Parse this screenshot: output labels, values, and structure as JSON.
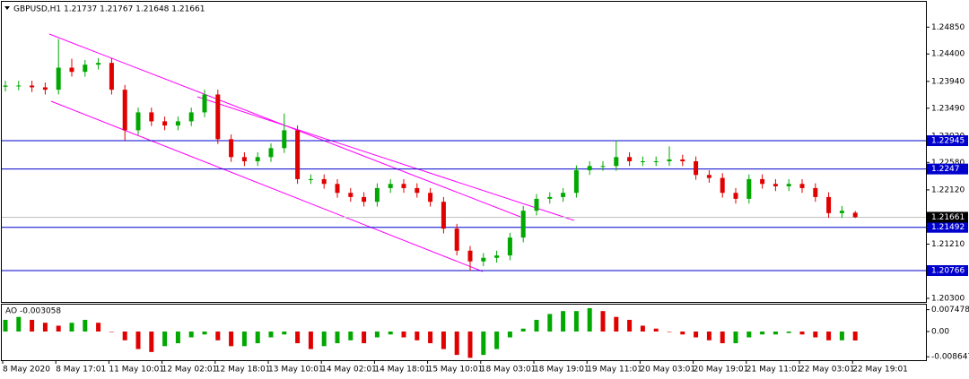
{
  "chart_data": {
    "type": "candlestick",
    "title": "GBPUSD,H1  1.21737 1.21767 1.21648 1.21661",
    "categories": [
      "8 May 2020",
      null,
      null,
      null,
      "8 May 17:01",
      null,
      null,
      null,
      "11 May 10:01",
      null,
      null,
      null,
      "12 May 02:01",
      null,
      null,
      null,
      "12 May 18:01",
      null,
      null,
      null,
      "13 May 10:01",
      null,
      null,
      null,
      "14 May 02:01",
      null,
      null,
      null,
      "14 May 18:01",
      null,
      null,
      null,
      "15 May 10:01",
      null,
      null,
      null,
      "18 May 03:01",
      null,
      null,
      null,
      "18 May 19:01",
      null,
      null,
      null,
      "19 May 11:01",
      null,
      null,
      null,
      "20 May 03:01",
      null,
      null,
      null,
      "20 May 19:01",
      null,
      null,
      null,
      "21 May 11:01",
      null,
      null,
      null,
      "22 May 03:01",
      null,
      null,
      null,
      "22 May 19:01"
    ],
    "open": [
      1.2385,
      1.2387,
      1.2387,
      1.2384,
      1.238,
      1.2417,
      1.241,
      1.2422,
      1.2425,
      1.238,
      1.2312,
      1.2342,
      1.2327,
      1.232,
      1.2327,
      1.2342,
      1.2372,
      1.2297,
      1.2267,
      1.226,
      1.2267,
      1.2282,
      1.2312,
      1.223,
      1.223,
      1.2222,
      1.2207,
      1.22,
      1.2192,
      1.2215,
      1.2222,
      1.2215,
      1.2207,
      1.2192,
      1.2147,
      1.211,
      1.2092,
      1.2098,
      1.2102,
      1.2132,
      1.2177,
      1.2197,
      1.22,
      1.2207,
      1.2245,
      1.2252,
      1.2252,
      1.2267,
      1.226,
      1.226,
      1.226,
      1.2263,
      1.226,
      1.2237,
      1.2232,
      1.2207,
      1.2197,
      1.223,
      1.2222,
      1.2218,
      1.2222,
      1.2215,
      1.22,
      1.2173,
      1.21737
    ],
    "high": [
      1.2395,
      1.2395,
      1.2395,
      1.2392,
      1.2465,
      1.2432,
      1.243,
      1.2433,
      1.2433,
      1.2388,
      1.235,
      1.235,
      1.2335,
      1.2335,
      1.235,
      1.238,
      1.238,
      1.2305,
      1.2275,
      1.2275,
      1.229,
      1.234,
      1.232,
      1.2238,
      1.2238,
      1.223,
      1.2215,
      1.2208,
      1.2223,
      1.223,
      1.223,
      1.2223,
      1.2215,
      1.22,
      1.2155,
      1.2118,
      1.2106,
      1.211,
      1.214,
      1.2185,
      1.2205,
      1.2208,
      1.2215,
      1.2253,
      1.226,
      1.226,
      1.2295,
      1.2275,
      1.2268,
      1.2268,
      1.2285,
      1.2271,
      1.2268,
      1.2245,
      1.224,
      1.2215,
      1.2238,
      1.2238,
      1.223,
      1.223,
      1.223,
      1.2223,
      1.2208,
      1.2185,
      1.21767
    ],
    "low": [
      1.2377,
      1.2379,
      1.2376,
      1.2372,
      1.2372,
      1.2402,
      1.2402,
      1.2414,
      1.2372,
      1.2295,
      1.2304,
      1.2319,
      1.2312,
      1.2312,
      1.2319,
      1.2334,
      1.2289,
      1.2259,
      1.2252,
      1.2252,
      1.2259,
      1.2274,
      1.2222,
      1.2222,
      1.2214,
      1.2199,
      1.2192,
      1.2184,
      1.2184,
      1.2207,
      1.2207,
      1.2199,
      1.2184,
      1.2139,
      1.2102,
      1.2076,
      1.2084,
      1.209,
      1.2094,
      1.2124,
      1.2169,
      1.2189,
      1.2192,
      1.2199,
      1.2237,
      1.2244,
      1.2244,
      1.2252,
      1.2252,
      1.2252,
      1.2252,
      1.2252,
      1.2229,
      1.2224,
      1.2199,
      1.2189,
      1.2189,
      1.2214,
      1.221,
      1.221,
      1.2207,
      1.2192,
      1.2165,
      1.2165,
      1.21648
    ],
    "close": [
      1.2387,
      1.2387,
      1.2384,
      1.238,
      1.2417,
      1.241,
      1.2422,
      1.2425,
      1.238,
      1.2312,
      1.2342,
      1.2327,
      1.232,
      1.2327,
      1.2342,
      1.2372,
      1.2297,
      1.2267,
      1.226,
      1.2267,
      1.2282,
      1.2312,
      1.223,
      1.223,
      1.2222,
      1.2207,
      1.22,
      1.2192,
      1.2215,
      1.2222,
      1.2215,
      1.2207,
      1.2192,
      1.2147,
      1.211,
      1.2092,
      1.2098,
      1.2102,
      1.2132,
      1.2177,
      1.2197,
      1.22,
      1.2207,
      1.2245,
      1.2252,
      1.2252,
      1.2267,
      1.226,
      1.226,
      1.226,
      1.2263,
      1.226,
      1.2237,
      1.2232,
      1.2207,
      1.2197,
      1.223,
      1.2222,
      1.2218,
      1.2222,
      1.2215,
      1.22,
      1.2173,
      1.2177,
      1.21661
    ],
    "up_color": "#00a800",
    "down_color": "#e00000",
    "ylim": [
      1.2024,
      1.2523
    ],
    "yticks": [
      {
        "value": 1.2485,
        "label": "1.24850"
      },
      {
        "value": 1.244,
        "label": "1.24400"
      },
      {
        "value": 1.2394,
        "label": "1.23940"
      },
      {
        "value": 1.2349,
        "label": "1.23490"
      },
      {
        "value": 1.2302,
        "label": "1.23020"
      },
      {
        "value": 1.2258,
        "label": "1.22580"
      },
      {
        "value": 1.2212,
        "label": "1.22120"
      },
      {
        "value": 1.2121,
        "label": "1.21210"
      },
      {
        "value": 1.203,
        "label": "1.20300"
      }
    ],
    "levels": [
      1.22945,
      1.2247,
      1.21492,
      1.20766
    ],
    "level_color": "#0000cd",
    "current_price": 1.21661,
    "indicator": {
      "title": "AO -0.003058",
      "values": [
        0.004,
        0.005,
        0.004,
        0.003,
        0.002,
        0.003,
        0.004,
        0.003,
        0.0,
        -0.003,
        -0.006,
        -0.007,
        -0.005,
        -0.004,
        -0.002,
        -0.001,
        -0.003,
        -0.005,
        -0.005,
        -0.004,
        -0.002,
        -0.001,
        -0.004,
        -0.006,
        -0.005,
        -0.004,
        -0.003,
        -0.004,
        -0.002,
        -0.001,
        -0.002,
        -0.003,
        -0.004,
        -0.006,
        -0.008,
        -0.009,
        -0.008,
        -0.006,
        -0.002,
        0.001,
        0.004,
        0.006,
        0.007,
        0.007,
        0.008,
        0.007,
        0.005,
        0.004,
        0.002,
        0.001,
        0.0,
        -0.001,
        -0.002,
        -0.003,
        -0.004,
        -0.004,
        -0.002,
        -0.001,
        -0.001,
        -0.0005,
        -0.001,
        -0.002,
        -0.003,
        -0.003,
        -0.003058
      ],
      "ylim": [
        -0.0098,
        0.0092
      ],
      "yticks": [
        0.007478,
        {
          "value": 0,
          "label": "0.00"
        },
        -0.008647
      ],
      "up_color": "#00a800",
      "down_color": "#e00000"
    }
  }
}
